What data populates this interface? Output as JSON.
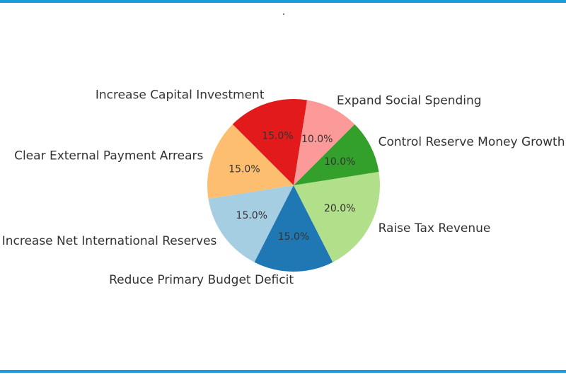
{
  "page": {
    "border_color": "#1a9bd7"
  },
  "chart_data": {
    "type": "pie",
    "title": "",
    "slices": [
      {
        "label": "Increase Capital Investment",
        "value": 15.0,
        "pct_label": "15.0%",
        "color": "#e31a1c"
      },
      {
        "label": "Clear External Payment Arrears",
        "value": 15.0,
        "pct_label": "15.0%",
        "color": "#fdbf6f"
      },
      {
        "label": "Increase Net International Reserves",
        "value": 15.0,
        "pct_label": "15.0%",
        "color": "#a6cee3"
      },
      {
        "label": "Reduce Primary Budget Deficit",
        "value": 15.0,
        "pct_label": "15.0%",
        "color": "#1f78b4"
      },
      {
        "label": "Raise Tax Revenue",
        "value": 20.0,
        "pct_label": "20.0%",
        "color": "#b2df8a"
      },
      {
        "label": "Control Reserve Money Growth",
        "value": 10.0,
        "pct_label": "10.0%",
        "color": "#33a02c"
      },
      {
        "label": "Expand Social Spending",
        "value": 10.0,
        "pct_label": "10.0%",
        "color": "#fb9a99"
      }
    ],
    "start_angle_deg": 81,
    "direction": "counterclockwise",
    "legend": "none"
  }
}
